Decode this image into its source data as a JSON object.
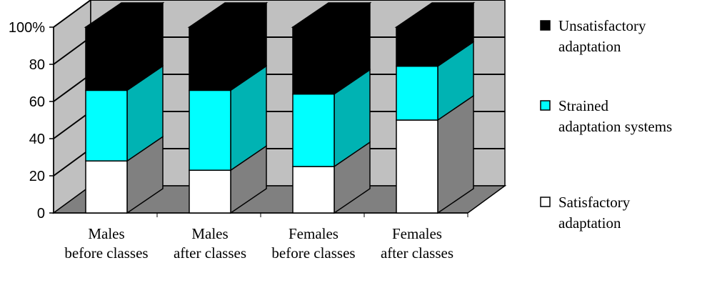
{
  "chart_data": {
    "type": "bar",
    "stacked": true,
    "three_d": true,
    "categories": [
      [
        "Males",
        "before classes"
      ],
      [
        "Males",
        "after classes"
      ],
      [
        "Females",
        "before classes"
      ],
      [
        "Females",
        "after classes"
      ]
    ],
    "series": [
      {
        "name": [
          "Satisfactory",
          "adaptation"
        ],
        "values": [
          28,
          23,
          25,
          50
        ],
        "color": "#ffffff",
        "side": "#808080",
        "top": "#ffffff"
      },
      {
        "name": [
          "Strained",
          "adaptation systems"
        ],
        "values": [
          38,
          43,
          39,
          29
        ],
        "color": "#00ffff",
        "side": "#00b3b3",
        "top": "#00ffff"
      },
      {
        "name": [
          "Unsatisfactory",
          "adaptation"
        ],
        "values": [
          34,
          34,
          36,
          21
        ],
        "color": "#000000",
        "side": "#000000",
        "top": "#000000"
      }
    ],
    "yticks": [
      "0",
      "20",
      "40",
      "60",
      "80",
      "100%"
    ],
    "ylim": [
      0,
      100
    ],
    "legend": "right",
    "grid": true
  }
}
